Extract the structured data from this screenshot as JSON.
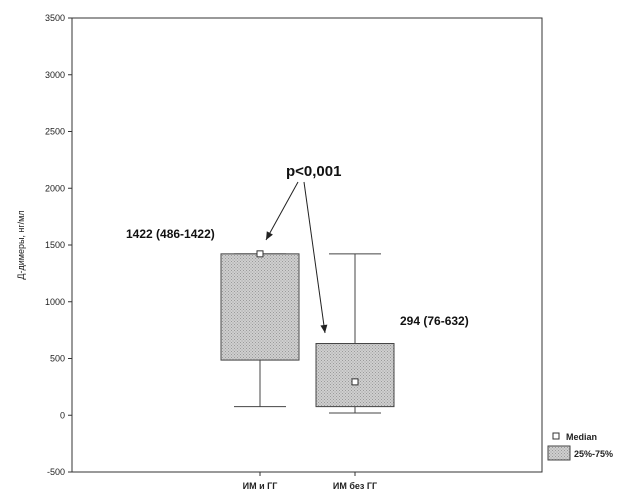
{
  "chart_data": {
    "type": "box",
    "ylabel": "Д-димеры, нг/мл",
    "ylim": [
      -500,
      3500
    ],
    "y_ticks": [
      -500,
      0,
      500,
      1000,
      1500,
      2000,
      2500,
      3000,
      3500
    ],
    "categories": [
      "ИМ и ГГ",
      "ИМ без ГГ"
    ],
    "boxes": [
      {
        "category": "ИМ и ГГ",
        "median": 1422,
        "q1": 486,
        "q3": 1422,
        "whisker_low": 76,
        "whisker_high": 1422
      },
      {
        "category": "ИМ без ГГ",
        "median": 294,
        "q1": 76,
        "q3": 632,
        "whisker_low": 20,
        "whisker_high": 1422
      }
    ],
    "annotations": {
      "box1_label": "1422 (486-1422)",
      "box2_label": "294 (76-632)",
      "significance": "p<0,001"
    },
    "legend": {
      "position": "bottom-right",
      "items": [
        {
          "label": "Median",
          "symbol": "square-marker"
        },
        {
          "label": "25%-75%",
          "symbol": "filled-box"
        }
      ]
    },
    "colors": {
      "box_fill": "#c8c8c8",
      "box_stroke": "#444444",
      "axis": "#333333"
    }
  }
}
